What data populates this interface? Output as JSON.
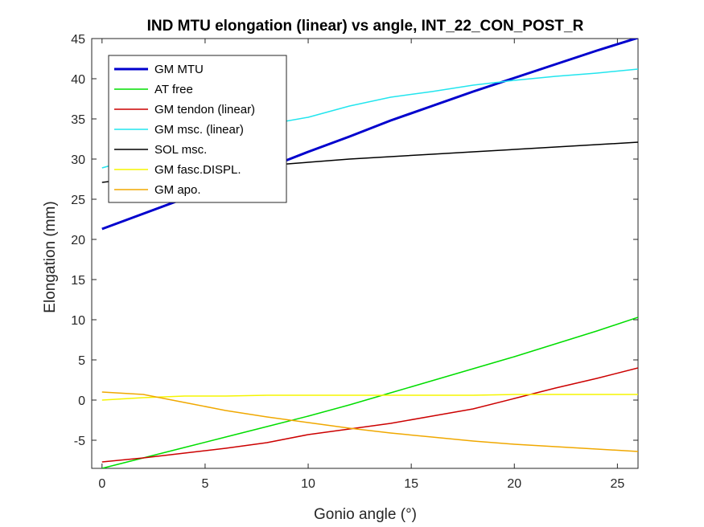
{
  "chart_data": {
    "type": "line",
    "title": "IND MTU elongation (linear) vs angle, INT_22_CON_POST_R",
    "xlabel": "Gonio angle (°)",
    "ylabel": "Elongation (mm)",
    "xlim": [
      -0.5,
      26
    ],
    "ylim": [
      -8.5,
      45
    ],
    "xticks": [
      0,
      5,
      10,
      15,
      20,
      25
    ],
    "yticks": [
      -5,
      0,
      5,
      10,
      15,
      20,
      25,
      30,
      35,
      40,
      45
    ],
    "grid": false,
    "legend_position": "top-left",
    "x": [
      0,
      2,
      4,
      6,
      8,
      10,
      12,
      14,
      16,
      18,
      20,
      22,
      24,
      26
    ],
    "series": [
      {
        "name": "GM MTU",
        "color": "#0000cd",
        "width": 3,
        "values": [
          21.3,
          23.2,
          25.1,
          27.0,
          28.9,
          30.9,
          32.8,
          34.8,
          36.6,
          38.4,
          40.1,
          41.8,
          43.5,
          45.1
        ]
      },
      {
        "name": "AT free",
        "color": "#00dd00",
        "width": 1.5,
        "values": [
          -8.5,
          -7.2,
          -5.9,
          -4.6,
          -3.3,
          -2.0,
          -0.6,
          0.9,
          2.4,
          3.9,
          5.4,
          7.0,
          8.6,
          10.3
        ]
      },
      {
        "name": "GM tendon (linear)",
        "color": "#cc0000",
        "width": 1.5,
        "values": [
          -7.7,
          -7.2,
          -6.6,
          -6.0,
          -5.3,
          -4.3,
          -3.6,
          -2.9,
          -2.0,
          -1.1,
          0.2,
          1.5,
          2.7,
          4.0
        ]
      },
      {
        "name": "GM msc. (linear)",
        "color": "#22e5ee",
        "width": 1.5,
        "values": [
          28.9,
          30.3,
          31.8,
          33.1,
          34.3,
          35.2,
          36.6,
          37.7,
          38.4,
          39.2,
          39.8,
          40.3,
          40.7,
          41.2
        ]
      },
      {
        "name": "SOL msc.",
        "color": "#000000",
        "width": 1.5,
        "values": [
          27.1,
          27.7,
          28.2,
          28.7,
          29.2,
          29.6,
          30.0,
          30.3,
          30.6,
          30.9,
          31.2,
          31.5,
          31.8,
          32.1
        ]
      },
      {
        "name": "GM fasc.DISPL.",
        "color": "#f5f500",
        "width": 1.5,
        "values": [
          0.0,
          0.3,
          0.5,
          0.5,
          0.6,
          0.6,
          0.6,
          0.6,
          0.6,
          0.6,
          0.7,
          0.7,
          0.7,
          0.7
        ]
      },
      {
        "name": "GM apo.",
        "color": "#f0a800",
        "width": 1.5,
        "values": [
          1.0,
          0.7,
          -0.3,
          -1.3,
          -2.1,
          -2.8,
          -3.5,
          -4.1,
          -4.6,
          -5.1,
          -5.5,
          -5.8,
          -6.1,
          -6.4
        ]
      }
    ]
  }
}
